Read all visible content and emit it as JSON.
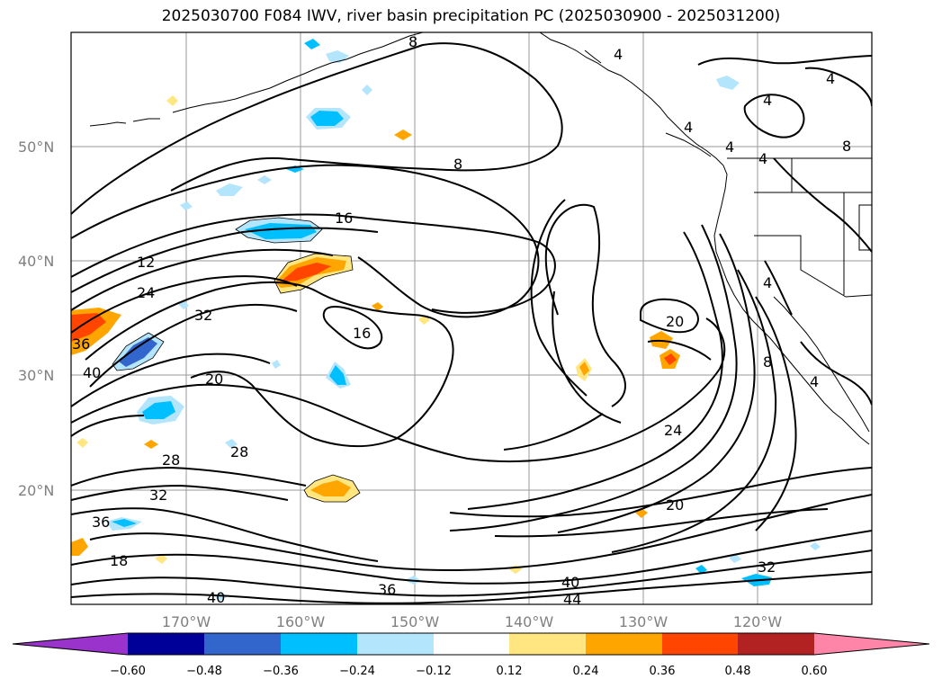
{
  "title": "2025030700 F084 IWV, river basin precipitation PC (2025030900 - 2025031200)",
  "map": {
    "lat_labels": [
      "50°N",
      "40°N",
      "30°N",
      "20°N"
    ],
    "lon_labels": [
      "170°W",
      "160°W",
      "150°W",
      "140°W",
      "130°W",
      "120°W"
    ],
    "contour_labels": [
      "8",
      "4",
      "4",
      "4",
      "4",
      "4",
      "4",
      "8",
      "8",
      "12",
      "16",
      "24",
      "32",
      "16",
      "20",
      "36",
      "40",
      "20",
      "24",
      "28",
      "28",
      "32",
      "36",
      "18",
      "20",
      "32",
      "40",
      "36",
      "40",
      "44",
      "8",
      "4",
      "4"
    ]
  },
  "colorbar": {
    "tick_labels": [
      "−0.60",
      "−0.48",
      "−0.36",
      "−0.24",
      "−0.12",
      "0.12",
      "0.24",
      "0.36",
      "0.48",
      "0.60"
    ],
    "colors": [
      "#9933cc",
      "#000099",
      "#3366cc",
      "#00bfff",
      "#b3e5fc",
      "#ffffff",
      "#ffe680",
      "#ffa500",
      "#ff4500",
      "#b22222",
      "#ff85a8"
    ]
  }
}
